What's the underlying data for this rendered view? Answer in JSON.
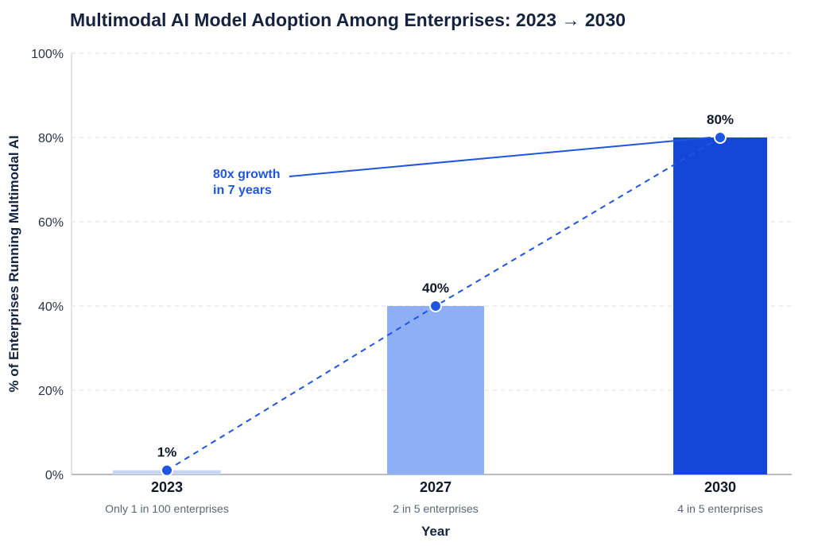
{
  "chart_data": {
    "type": "bar",
    "title": "Multimodal AI Model Adoption Among Enterprises: 2023 → 2030",
    "xlabel": "Year",
    "ylabel": "% of Enterprises Running Multimodal AI",
    "ylim": [
      0,
      100
    ],
    "yticks": [
      0,
      20,
      40,
      60,
      80,
      100
    ],
    "ytick_labels": [
      "0%",
      "20%",
      "40%",
      "60%",
      "80%",
      "100%"
    ],
    "grid": true,
    "categories": [
      "2023",
      "2027",
      "2030"
    ],
    "values": [
      1,
      40,
      80
    ],
    "data_labels": [
      "1%",
      "40%",
      "80%"
    ],
    "sublabels": [
      "Only 1 in 100 enterprises",
      "2 in 5 enterprises",
      "4 in 5 enterprises"
    ],
    "bar_colors": [
      "#c9d6f1",
      "#8eaef5",
      "#1447d9"
    ],
    "trend_line": {
      "style": "dashed",
      "color": "#1f55e0"
    },
    "annotation": {
      "lines": [
        "80x growth",
        "in 7 years"
      ],
      "color": "#1f55e0",
      "points_to": "2030"
    },
    "colors": {
      "title": "#15233f",
      "axis_text": "#2a3447",
      "sublabel": "#5b6577",
      "grid": "#d9dde6"
    }
  }
}
